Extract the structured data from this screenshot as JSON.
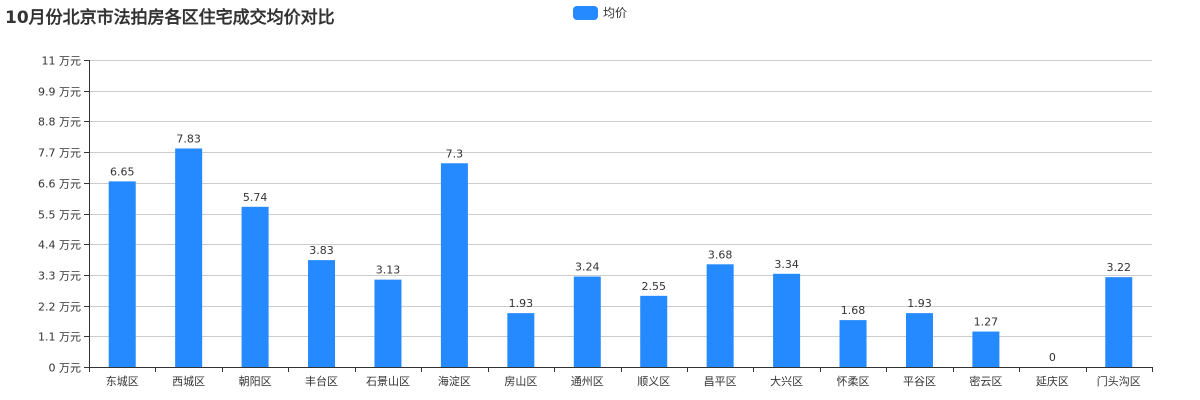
{
  "title": "10月份北京市法拍房各区住宅成交均价对比",
  "legend": {
    "label": "均价",
    "color": "#2589ff"
  },
  "colors": {
    "bar": "#2589ff",
    "grid": "#cccccc",
    "axis": "#333333",
    "text": "#333333"
  },
  "chart_data": {
    "type": "bar",
    "title": "10月份北京市法拍房各区住宅成交均价对比",
    "xlabel": "",
    "ylabel": "",
    "y_unit": "万元",
    "ylim": [
      0,
      11
    ],
    "yticks": [
      "0 万元",
      "1.1 万元",
      "2.2 万元",
      "3.3 万元",
      "4.4 万元",
      "5.5 万元",
      "6.6 万元",
      "7.7 万元",
      "8.8 万元",
      "9.9 万元",
      "11 万元"
    ],
    "grid": true,
    "legend_position": "top-center",
    "categories": [
      "东城区",
      "西城区",
      "朝阳区",
      "丰台区",
      "石景山区",
      "海淀区",
      "房山区",
      "通州区",
      "顺义区",
      "昌平区",
      "大兴区",
      "怀柔区",
      "平谷区",
      "密云区",
      "延庆区",
      "门头沟区"
    ],
    "series": [
      {
        "name": "均价",
        "values": [
          6.65,
          7.83,
          5.74,
          3.83,
          3.13,
          7.3,
          1.93,
          3.24,
          2.55,
          3.68,
          3.34,
          1.68,
          1.93,
          1.27,
          0,
          3.22
        ]
      }
    ]
  }
}
